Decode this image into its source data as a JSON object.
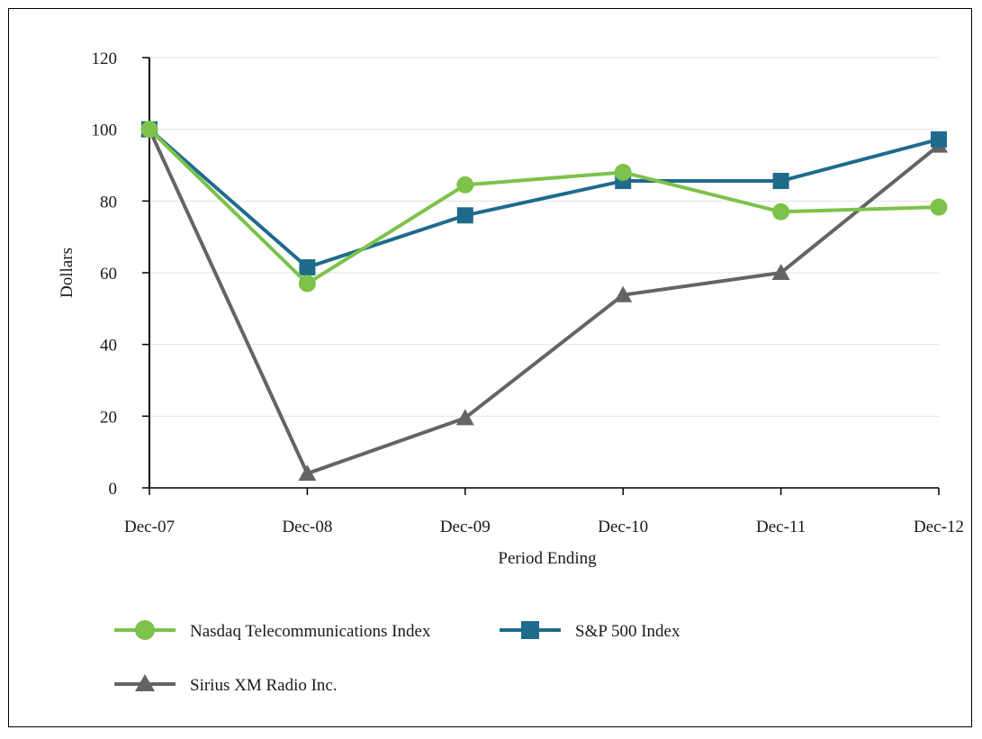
{
  "chart_data": {
    "type": "line",
    "title": "",
    "xlabel": "Period Ending",
    "ylabel": "Dollars",
    "categories": [
      "Dec-07",
      "Dec-08",
      "Dec-09",
      "Dec-10",
      "Dec-11",
      "Dec-12"
    ],
    "ylim": [
      0,
      120
    ],
    "yticks": [
      0,
      20,
      40,
      60,
      80,
      100,
      120
    ],
    "grid": "horizontal",
    "legend_position": "bottom",
    "series": [
      {
        "name": "Nasdaq Telecommunications Index",
        "values": [
          100,
          57,
          84.5,
          88,
          77,
          78.3
        ],
        "color": "#7dc24b",
        "marker": "circle"
      },
      {
        "name": "S&P 500 Index",
        "values": [
          100,
          61.5,
          76,
          85.6,
          85.6,
          97.2
        ],
        "color": "#1f6b8c",
        "marker": "square"
      },
      {
        "name": "Sirius XM Radio Inc.",
        "values": [
          100,
          4,
          19.5,
          53.8,
          60,
          95.5
        ],
        "color": "#636466",
        "marker": "triangle"
      }
    ]
  }
}
